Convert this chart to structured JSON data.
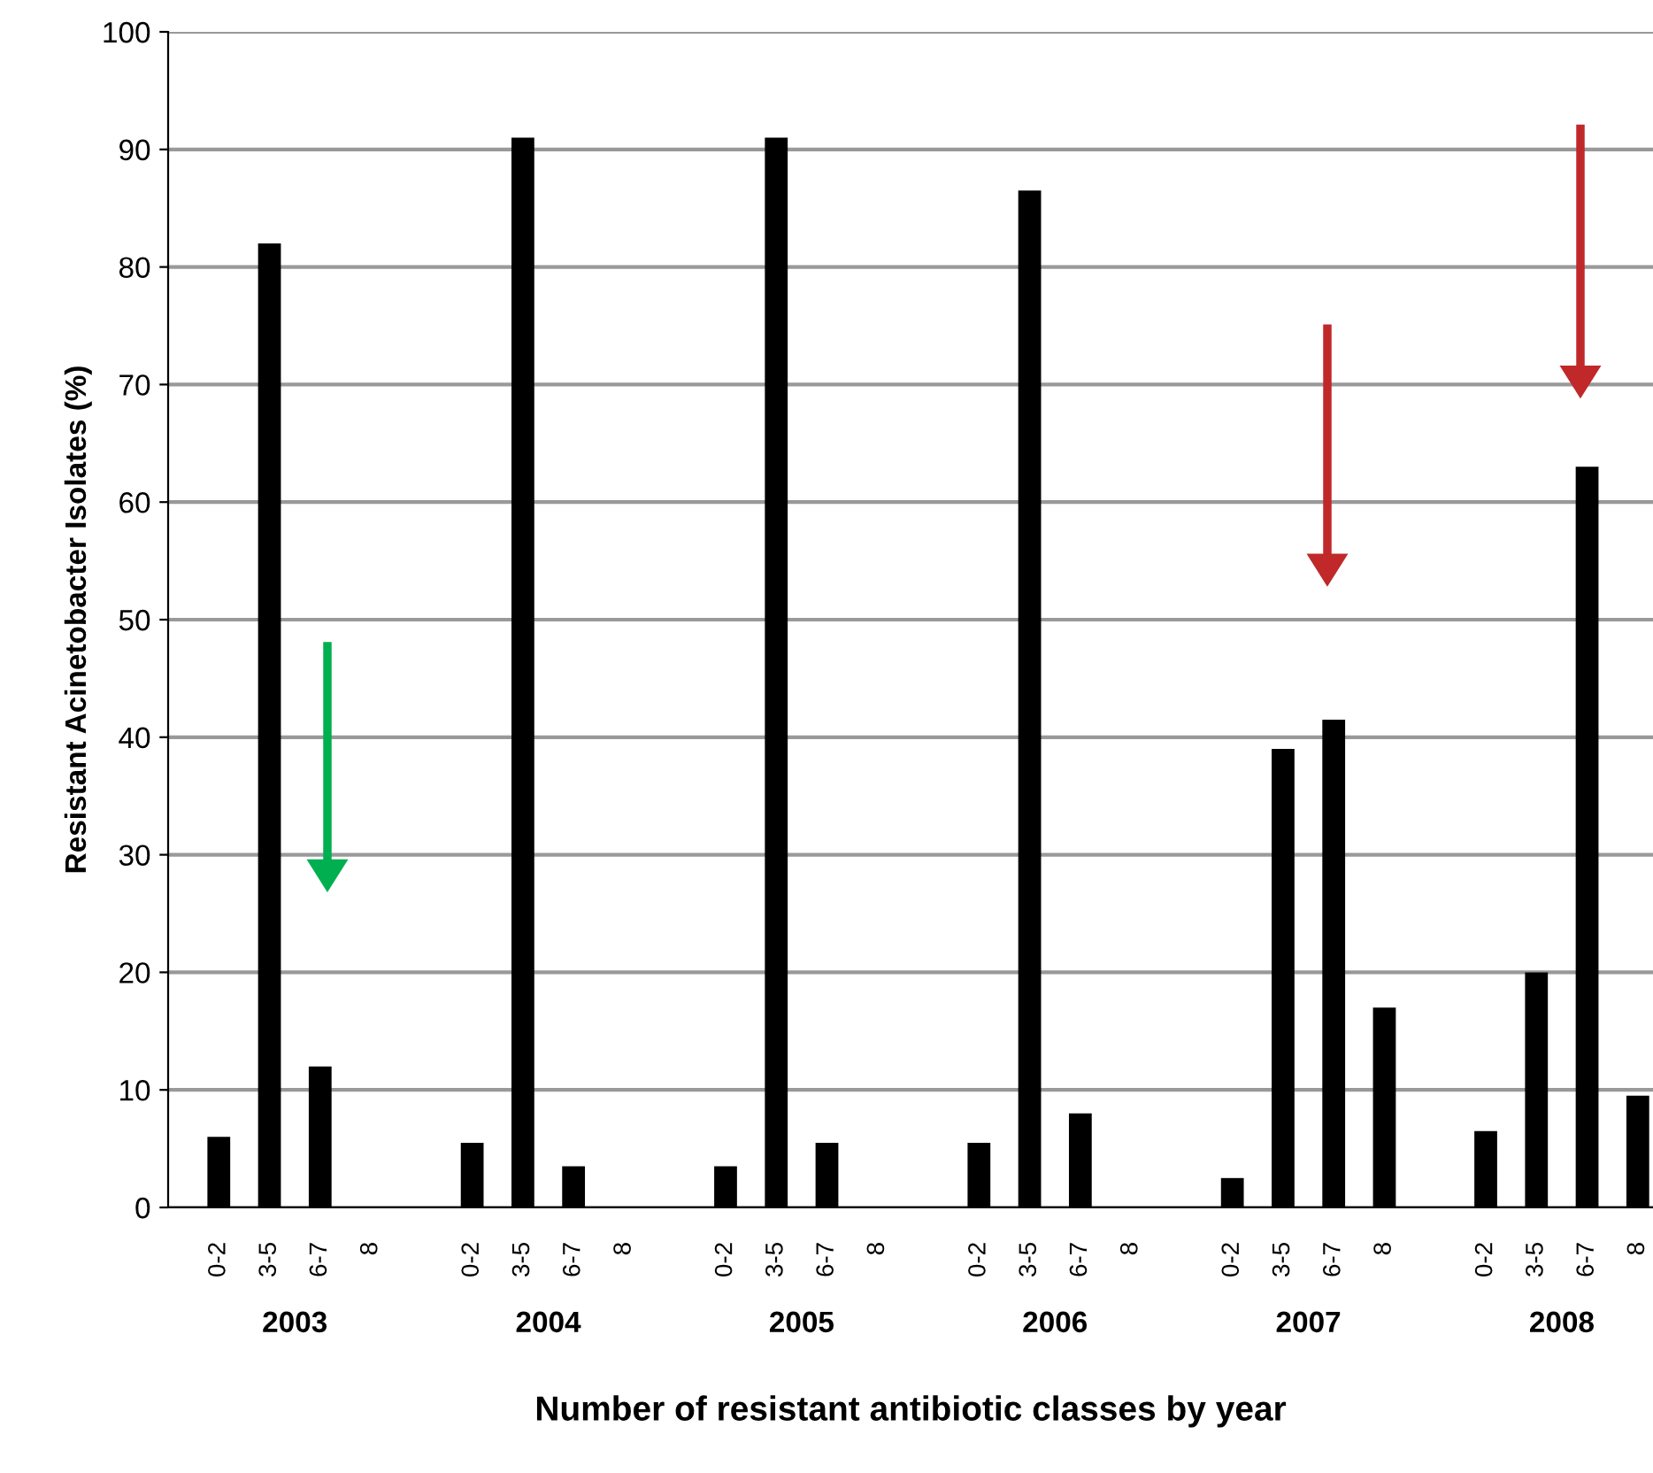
{
  "chart_data": {
    "type": "bar",
    "xlabel": "Number of resistant antibiotic classes by year",
    "ylabel": "Resistant Acinetobacter Isolates (%)",
    "categories": [
      "0-2",
      "3-5",
      "6-7",
      "8",
      null,
      "0-2",
      "3-5",
      "6-7",
      "8",
      null,
      "0-2",
      "3-5",
      "6-7",
      "8",
      null,
      "0-2",
      "3-5",
      "6-7",
      "8",
      null,
      "0-2",
      "3-5",
      "6-7",
      "8",
      null,
      "0-2",
      "3-5",
      "6-7",
      "8"
    ],
    "values": [
      6,
      82,
      12,
      0,
      null,
      5.5,
      91,
      3.5,
      0,
      null,
      3.5,
      91,
      5.5,
      0,
      null,
      5.5,
      86.5,
      8,
      0,
      null,
      2.5,
      39,
      41.5,
      17,
      null,
      6.5,
      20,
      63,
      9.5
    ],
    "color": "#000000",
    "annotations": [
      "2003",
      "2004",
      "2005",
      "2006",
      "2007",
      "2008"
    ],
    "ylim": [
      0,
      100
    ],
    "yticks": [
      0,
      10,
      20,
      30,
      40,
      50,
      60,
      70,
      80,
      90,
      100
    ],
    "grid": "y",
    "legend": false
  }
}
